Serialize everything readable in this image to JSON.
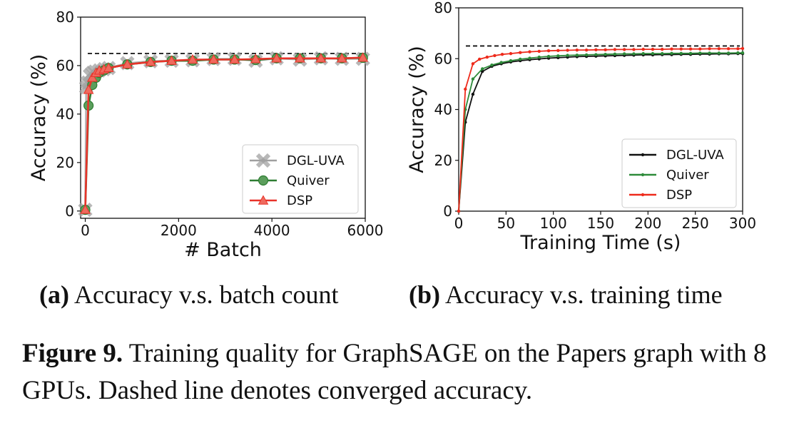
{
  "chart_data": [
    {
      "type": "line",
      "subfigure_label": "(a)",
      "subfigure_caption": "Accuracy v.s. batch count",
      "xlabel": "# Batch",
      "ylabel": "Accuracy (%)",
      "xlim": [
        -100,
        6000
      ],
      "ylim": [
        -3,
        80
      ],
      "xticks": [
        0,
        2000,
        4000,
        6000
      ],
      "yticks": [
        0,
        20,
        40,
        60,
        80
      ],
      "converged_accuracy": 65,
      "legend_position": "lower-right",
      "series": [
        {
          "name": "DGL-UVA",
          "color": "#a0a0a0",
          "marker": "x",
          "x": [
            0,
            20,
            50,
            100,
            150,
            200,
            300,
            400,
            500,
            900,
            1400,
            1850,
            2300,
            2750,
            3200,
            3650,
            4100,
            4600,
            5050,
            5500,
            5950
          ],
          "y": [
            0.5,
            51,
            53,
            56,
            57,
            57.5,
            58,
            58.5,
            59,
            61,
            61.8,
            62,
            62.2,
            62.7,
            62.8,
            62,
            63,
            62.5,
            63,
            62.8,
            62.8
          ]
        },
        {
          "name": "Quiver",
          "color": "#2e7d32",
          "marker": "o",
          "x": [
            0,
            70,
            150,
            230,
            300,
            400,
            500,
            900,
            1400,
            1850,
            2300,
            2750,
            3200,
            3650,
            4100,
            4600,
            5050,
            5500,
            5950
          ],
          "y": [
            0.5,
            43.5,
            52,
            55,
            57,
            58,
            59,
            60.5,
            61.5,
            62,
            62,
            62.5,
            62.5,
            62.3,
            63,
            63,
            63,
            63,
            63.2
          ]
        },
        {
          "name": "DSP",
          "color": "#e8332a",
          "marker": "^",
          "x": [
            0,
            70,
            150,
            230,
            300,
            400,
            500,
            900,
            1400,
            1850,
            2300,
            2750,
            3200,
            3650,
            4100,
            4600,
            5050,
            5500,
            5950
          ],
          "y": [
            0.5,
            50,
            55,
            57,
            58,
            58.5,
            59,
            60.5,
            61.5,
            62,
            62.5,
            62.5,
            62.5,
            62.7,
            63,
            63,
            63,
            63,
            63.3
          ]
        }
      ]
    },
    {
      "type": "line",
      "subfigure_label": "(b)",
      "subfigure_caption": "Accuracy v.s. training time",
      "xlabel": "Training Time (s)",
      "ylabel": "Accuracy (%)",
      "xlim": [
        0,
        300
      ],
      "ylim": [
        0,
        80
      ],
      "xticks": [
        0,
        50,
        100,
        150,
        200,
        250,
        300
      ],
      "yticks": [
        0,
        20,
        40,
        60,
        80
      ],
      "converged_accuracy": 65,
      "legend_position": "lower-right",
      "series": [
        {
          "name": "DGL-UVA",
          "color": "#111111",
          "marker": ".",
          "x": [
            0,
            7,
            15,
            25,
            35,
            45,
            55,
            65,
            75,
            85,
            95,
            105,
            115,
            125,
            135,
            145,
            155,
            165,
            175,
            185,
            195,
            205,
            215,
            225,
            235,
            245,
            255,
            265,
            275,
            285,
            295,
            300
          ],
          "y": [
            0,
            35,
            46,
            55,
            57,
            58,
            58.7,
            59.2,
            59.6,
            59.9,
            60.2,
            60.4,
            60.6,
            60.8,
            60.9,
            61,
            61.1,
            61.2,
            61.3,
            61.4,
            61.5,
            61.5,
            61.6,
            61.6,
            61.7,
            61.7,
            61.8,
            61.8,
            61.9,
            61.9,
            62,
            62
          ]
        },
        {
          "name": "Quiver",
          "color": "#2e8b3a",
          "marker": ".",
          "x": [
            0,
            7,
            15,
            25,
            35,
            45,
            55,
            65,
            75,
            85,
            95,
            105,
            115,
            125,
            135,
            145,
            155,
            165,
            175,
            185,
            195,
            205,
            215,
            225,
            235,
            245,
            255,
            265,
            275,
            285,
            295,
            300
          ],
          "y": [
            0,
            40,
            52,
            56,
            57.5,
            58.5,
            59.2,
            59.8,
            60.2,
            60.6,
            60.9,
            61.1,
            61.3,
            61.4,
            61.5,
            61.6,
            61.7,
            61.8,
            61.9,
            61.9,
            62,
            62,
            62,
            62.1,
            62.1,
            62.1,
            62.2,
            62.2,
            62.2,
            62.2,
            62.3,
            62.3
          ]
        },
        {
          "name": "DSP",
          "color": "#ee2a1b",
          "marker": ".",
          "x": [
            0,
            7,
            15,
            22,
            30,
            38,
            46,
            55,
            65,
            75,
            85,
            95,
            105,
            115,
            125,
            135,
            145,
            155,
            165,
            175,
            185,
            195,
            205,
            215,
            225,
            235,
            245,
            255,
            265,
            275,
            285,
            295,
            300
          ],
          "y": [
            0,
            48,
            58,
            59.8,
            60.6,
            61.2,
            61.7,
            62,
            62.4,
            62.7,
            62.9,
            63.1,
            63.2,
            63.3,
            63.4,
            63.4,
            63.5,
            63.5,
            63.6,
            63.6,
            63.6,
            63.7,
            63.7,
            63.7,
            63.8,
            63.8,
            63.8,
            63.8,
            63.9,
            63.9,
            63.9,
            63.9,
            64
          ]
        }
      ]
    }
  ],
  "figure_caption": {
    "label": "Figure 9.",
    "text": "Training quality for GraphSAGE on the Papers graph with 8 GPUs. Dashed line denotes converged accuracy."
  }
}
